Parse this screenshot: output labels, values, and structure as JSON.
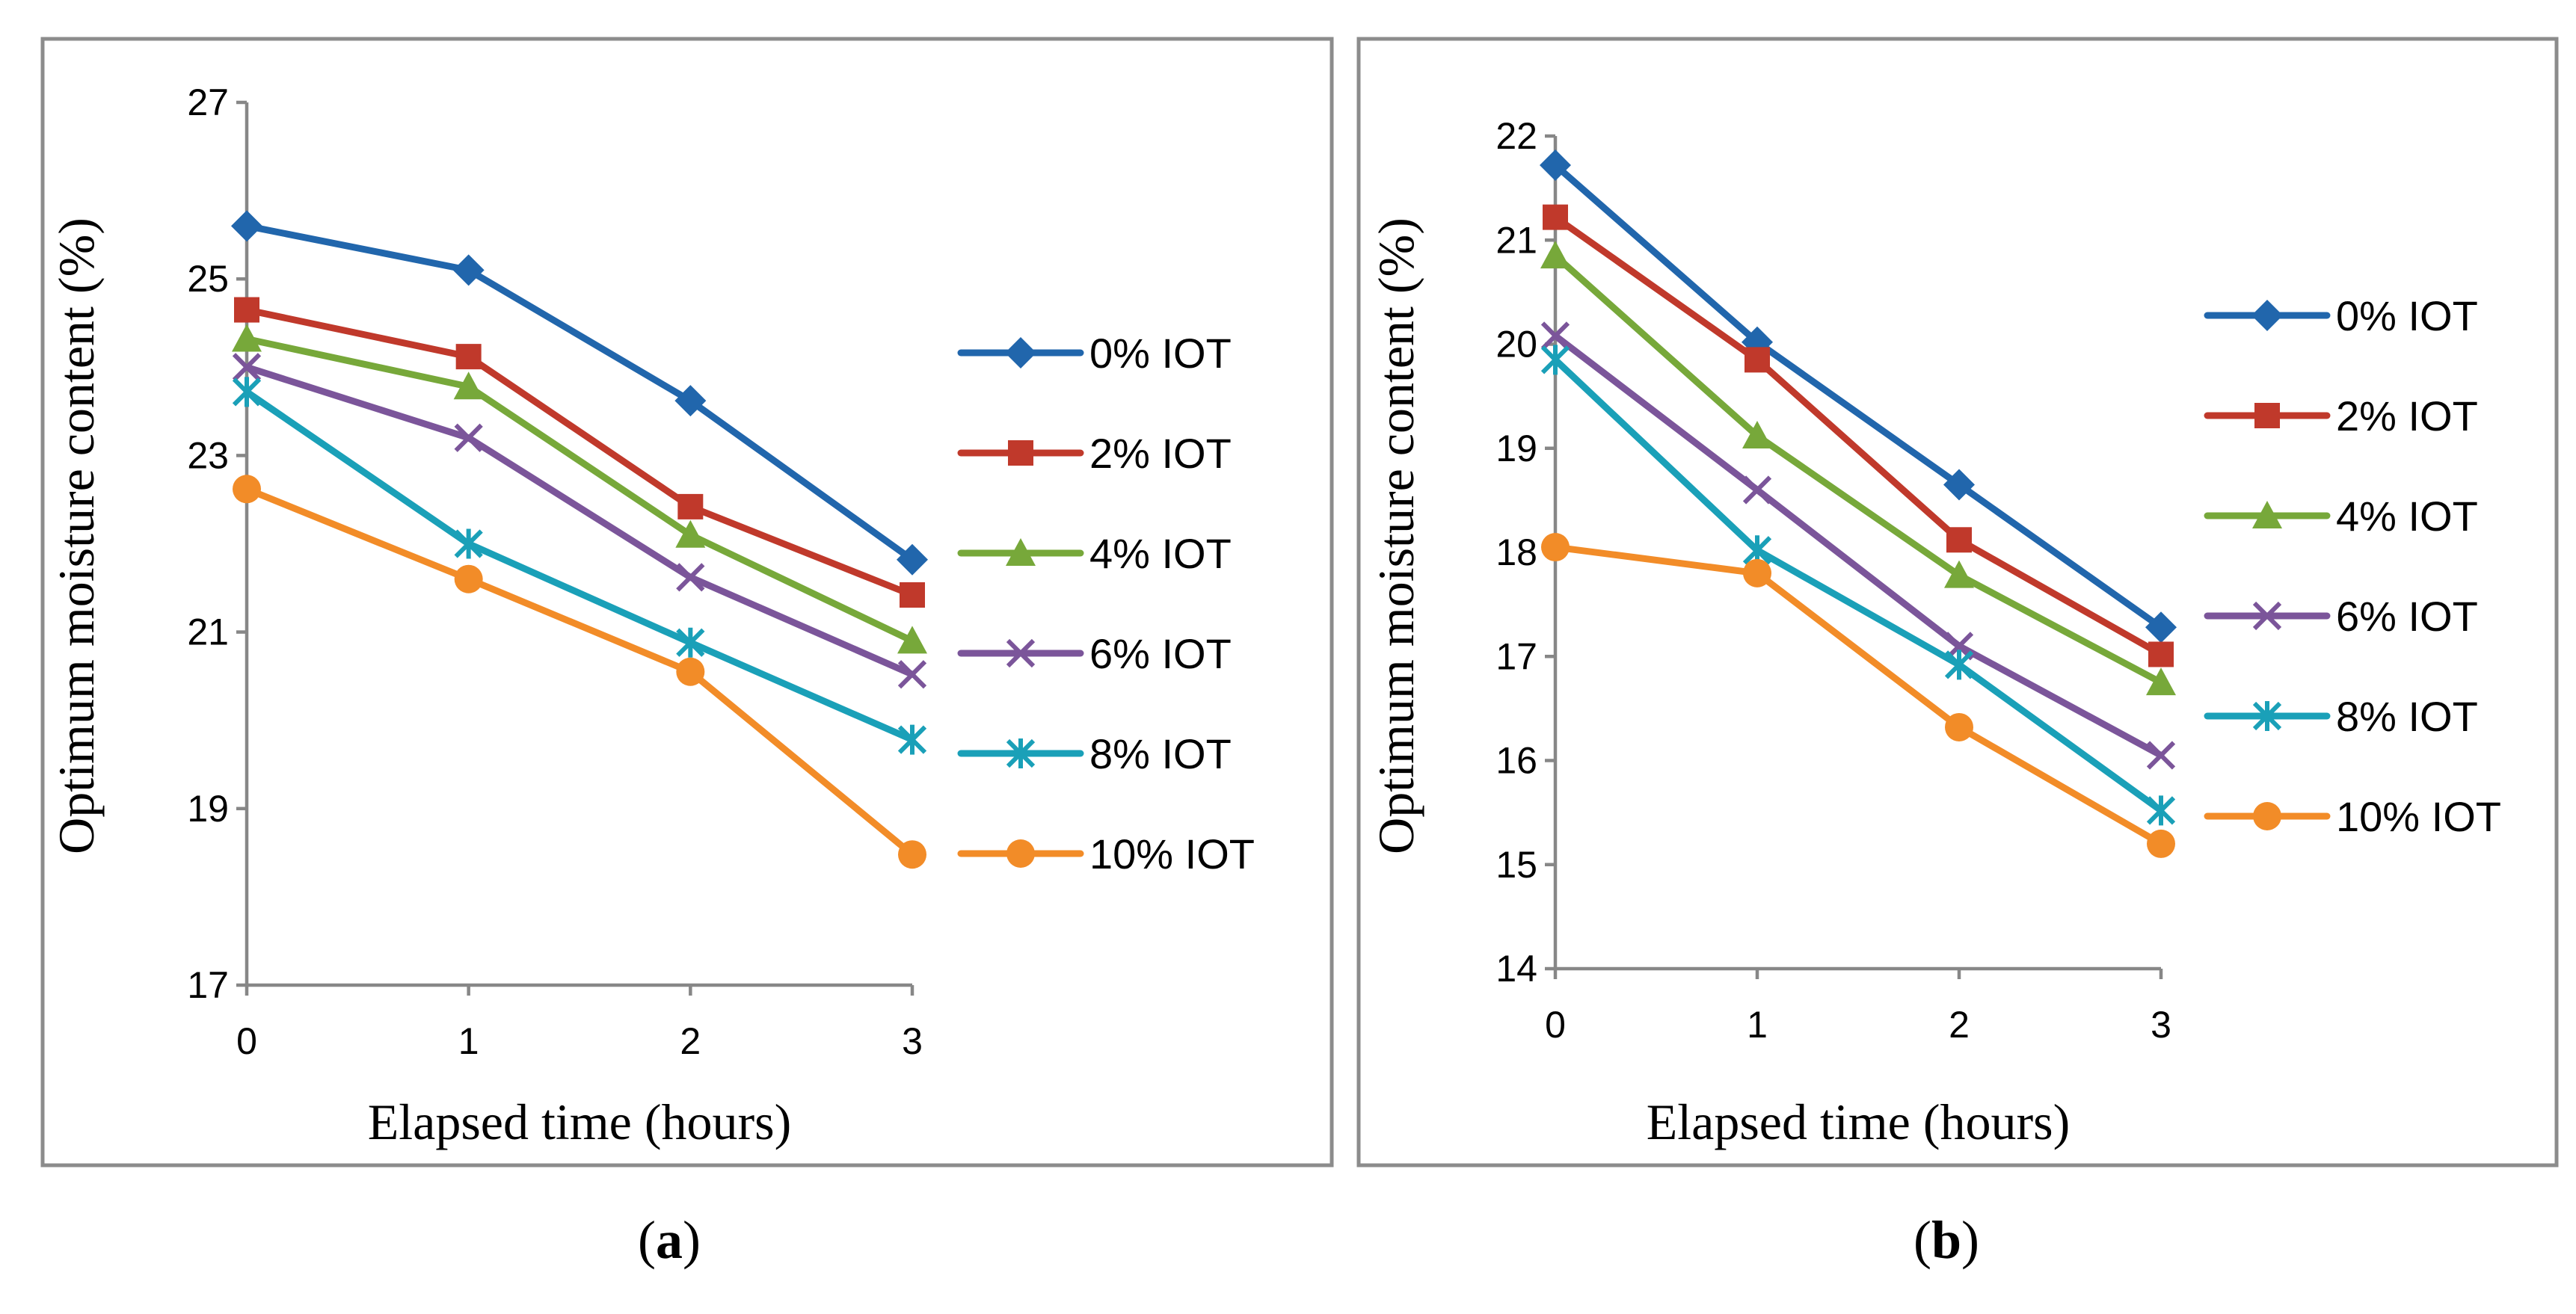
{
  "chart_data": [
    {
      "type": "line",
      "panel_label": "a",
      "x": [
        0,
        1,
        2,
        3
      ],
      "xlabel": "Elapsed time (hours)",
      "ylabel": "Optimum moisture content (%)",
      "ylim": [
        17,
        27
      ],
      "yticks": [
        17,
        19,
        21,
        23,
        25,
        27
      ],
      "xticks": [
        0,
        1,
        2,
        3
      ],
      "legend_position": "right",
      "series": [
        {
          "name": "0% IOT",
          "color": "#2166ac",
          "marker": "diamond",
          "values": [
            25.6,
            25.1,
            23.62,
            21.82
          ]
        },
        {
          "name": "2% IOT",
          "color": "#c0392b",
          "marker": "square",
          "values": [
            24.65,
            24.12,
            22.42,
            21.42
          ]
        },
        {
          "name": "4% IOT",
          "color": "#77a83a",
          "marker": "triangle",
          "values": [
            24.32,
            23.78,
            22.1,
            20.9
          ]
        },
        {
          "name": "6% IOT",
          "color": "#7b559a",
          "marker": "x",
          "values": [
            24.0,
            23.2,
            21.62,
            20.52
          ]
        },
        {
          "name": "8% IOT",
          "color": "#1aa0b8",
          "marker": "asterisk",
          "values": [
            23.72,
            22.0,
            20.88,
            19.78
          ]
        },
        {
          "name": "10% IOT",
          "color": "#f28c28",
          "marker": "circle",
          "values": [
            22.62,
            21.6,
            20.55,
            18.48
          ]
        }
      ]
    },
    {
      "type": "line",
      "panel_label": "b",
      "x": [
        0,
        1,
        2,
        3
      ],
      "xlabel": "Elapsed time (hours)",
      "ylabel": "Optimum moisture content (%)",
      "ylim": [
        14,
        22
      ],
      "yticks": [
        14,
        15,
        16,
        17,
        18,
        19,
        20,
        21,
        22
      ],
      "xticks": [
        0,
        1,
        2,
        3
      ],
      "legend_position": "right",
      "series": [
        {
          "name": "0% IOT",
          "color": "#2166ac",
          "marker": "diamond",
          "values": [
            21.72,
            20.02,
            18.65,
            17.28
          ]
        },
        {
          "name": "2% IOT",
          "color": "#c0392b",
          "marker": "square",
          "values": [
            21.22,
            19.85,
            18.12,
            17.02
          ]
        },
        {
          "name": "4% IOT",
          "color": "#77a83a",
          "marker": "triangle",
          "values": [
            20.85,
            19.12,
            17.78,
            16.75
          ]
        },
        {
          "name": "6% IOT",
          "color": "#7b559a",
          "marker": "x",
          "values": [
            20.08,
            18.6,
            17.1,
            16.05
          ]
        },
        {
          "name": "8% IOT",
          "color": "#1aa0b8",
          "marker": "asterisk",
          "values": [
            19.85,
            18.02,
            16.92,
            15.52
          ]
        },
        {
          "name": "10% IOT",
          "color": "#f28c28",
          "marker": "circle",
          "values": [
            18.05,
            17.8,
            16.32,
            15.2
          ]
        }
      ]
    }
  ]
}
